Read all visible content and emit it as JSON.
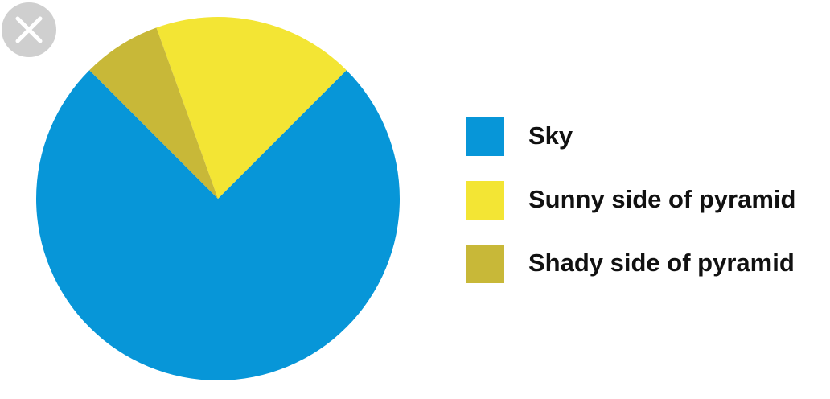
{
  "close_button": {
    "icon": "close-icon",
    "color": "#cfcfcf",
    "icon_color": "#ffffff"
  },
  "chart_data": {
    "type": "pie",
    "title": "",
    "start_angle_deg": 135,
    "direction": "counterclockwise",
    "slices": [
      {
        "label": "Sky",
        "value": 0.75,
        "color": "#0796d8"
      },
      {
        "label": "Sunny side of pyramid",
        "value": 0.18,
        "color": "#f3e534"
      },
      {
        "label": "Shady side of pyramid",
        "value": 0.07,
        "color": "#c8b838"
      }
    ],
    "legend": {
      "position": "right",
      "entries": [
        "Sky",
        "Sunny side of pyramid",
        "Shady side of pyramid"
      ]
    }
  }
}
